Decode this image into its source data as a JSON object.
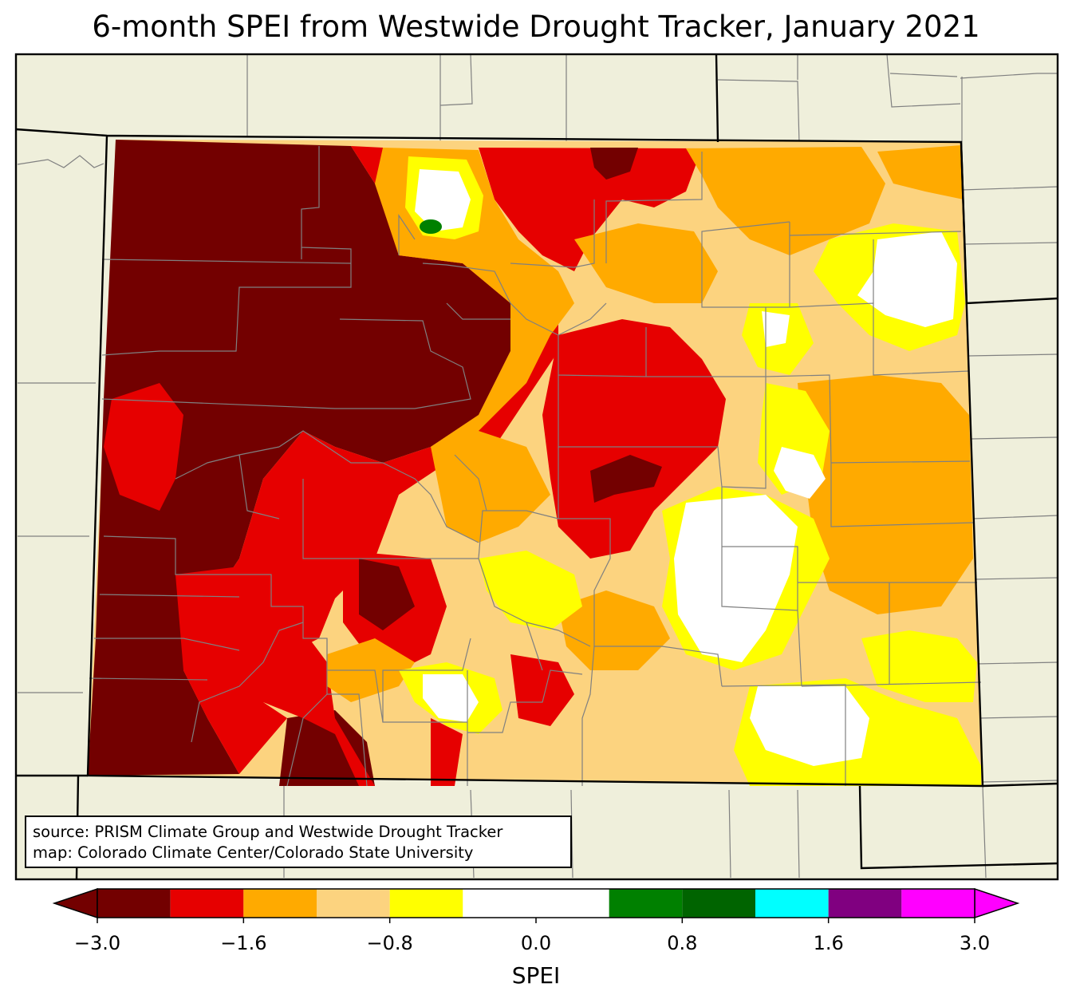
{
  "title": "6-month SPEI from Westwide Drought Tracker, January 2021",
  "source_lines": [
    "source: PRISM Climate Group and Westwide Drought Tracker",
    "map: Colorado Climate Center/Colorado State University"
  ],
  "colorbar": {
    "label": "SPEI",
    "min": -3.0,
    "max": 3.0,
    "extend": "both",
    "bins": [
      {
        "from": -3.0,
        "to": -2.0,
        "color": "#730000"
      },
      {
        "from": -2.0,
        "to": -1.6,
        "color": "#e60000"
      },
      {
        "from": -1.6,
        "to": -1.2,
        "color": "#ffaa00"
      },
      {
        "from": -1.2,
        "to": -0.8,
        "color": "#fcd37f"
      },
      {
        "from": -0.8,
        "to": -0.5,
        "color": "#ffff00"
      },
      {
        "from": -0.5,
        "to": 0.5,
        "color": "#ffffff"
      },
      {
        "from": 0.5,
        "to": 0.8,
        "color": "#008000"
      },
      {
        "from": 0.8,
        "to": 1.2,
        "color": "#006400"
      },
      {
        "from": 1.2,
        "to": 1.6,
        "color": "#00ffff"
      },
      {
        "from": 1.6,
        "to": 2.0,
        "color": "#800080"
      },
      {
        "from": 2.0,
        "to": 3.0,
        "color": "#ff00ff"
      }
    ],
    "under_color": "#730000",
    "over_color": "#ff00ff",
    "ticks": [
      {
        "value": -3.0,
        "label": "−3.0"
      },
      {
        "value": -1.6,
        "label": "−1.6"
      },
      {
        "value": -0.8,
        "label": "−0.8"
      },
      {
        "value": 0.0,
        "label": "0.0"
      },
      {
        "value": 0.8,
        "label": "0.8"
      },
      {
        "value": 1.6,
        "label": "1.6"
      },
      {
        "value": 3.0,
        "label": "3.0"
      }
    ]
  },
  "map_colors": {
    "land_background": "#efefdb",
    "county_lines": "#808080",
    "state_lines": "#000000"
  }
}
